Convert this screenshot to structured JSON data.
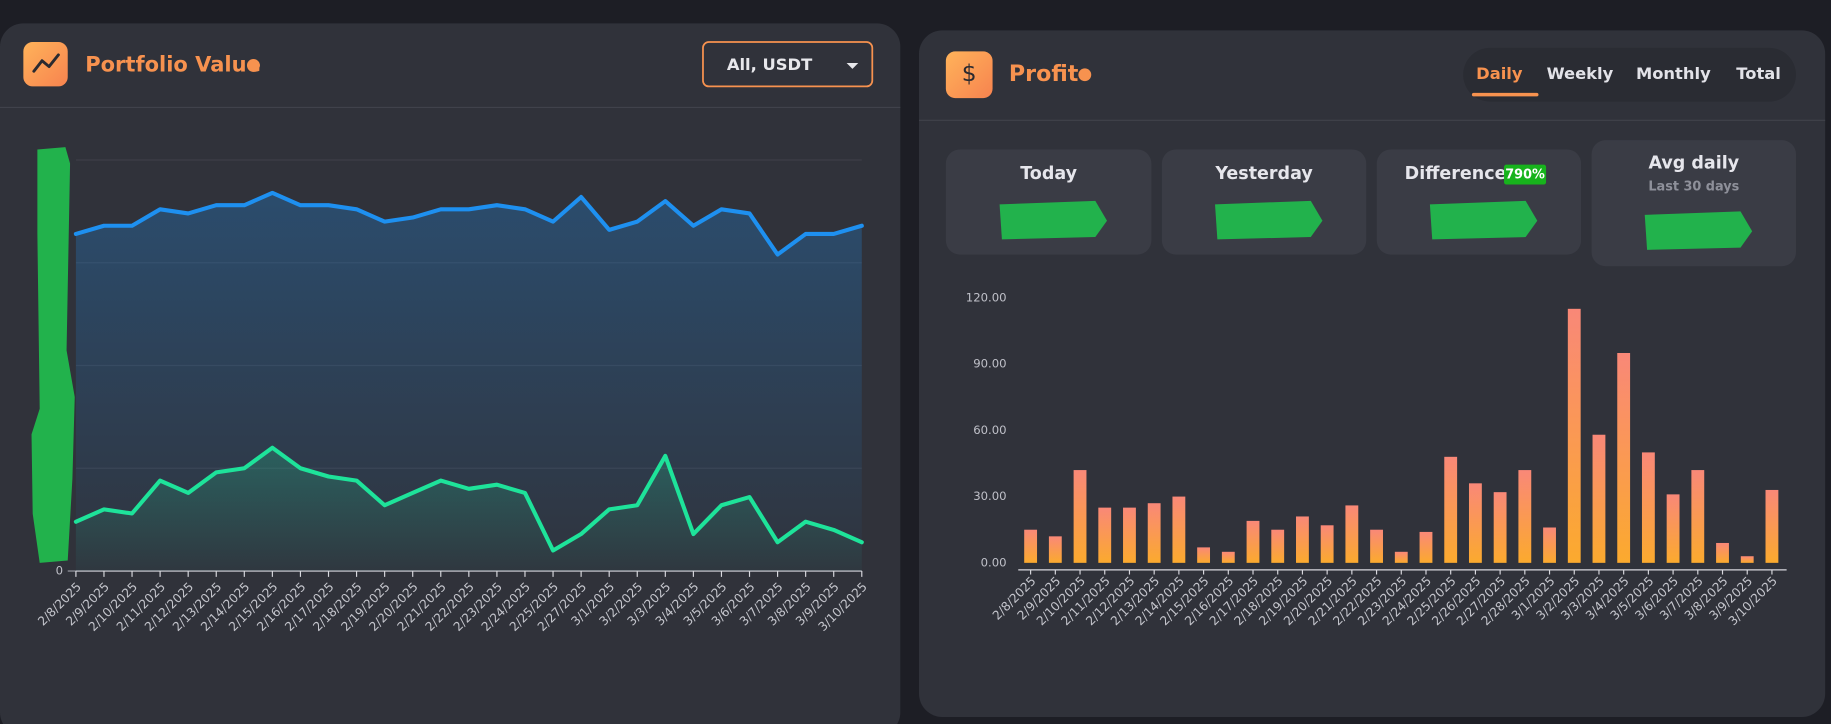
{
  "chart_data": [
    {
      "type": "line",
      "title": "Portfolio Value",
      "dropdown": "All, USDT",
      "categories": [
        "2/8/2025",
        "2/9/2025",
        "2/10/2025",
        "2/11/2025",
        "2/12/2025",
        "2/13/2025",
        "2/14/2025",
        "2/15/2025",
        "2/16/2025",
        "2/17/2025",
        "2/18/2025",
        "2/19/2025",
        "2/20/2025",
        "2/21/2025",
        "2/22/2025",
        "2/23/2025",
        "2/24/2025",
        "2/25/2025",
        "2/27/2025",
        "3/1/2025",
        "3/2/2025",
        "3/3/2025",
        "3/4/2025",
        "3/5/2025",
        "3/6/2025",
        "3/7/2025",
        "3/8/2025",
        "3/9/2025",
        "3/10/2025"
      ],
      "series": [
        {
          "color": "#1e90f0",
          "values": [
            82,
            84,
            84,
            88,
            87,
            89,
            89,
            92,
            89,
            89,
            88,
            85,
            86,
            88,
            88,
            89,
            88,
            85,
            91,
            83,
            85,
            90,
            84,
            88,
            87,
            77,
            82,
            82,
            84
          ]
        },
        {
          "color": "#1ee39a",
          "values": [
            12,
            15,
            14,
            22,
            19,
            24,
            25,
            30,
            25,
            23,
            22,
            16,
            19,
            22,
            20,
            21,
            19,
            5,
            9,
            15,
            16,
            28,
            9,
            16,
            18,
            7,
            12,
            10,
            7
          ]
        }
      ],
      "ylim": [
        0,
        100
      ],
      "yticks": [
        0
      ],
      "grid": true
    },
    {
      "type": "bar",
      "title": "Profit",
      "categories": [
        "2/8/2025",
        "2/9/2025",
        "2/10/2025",
        "2/11/2025",
        "2/12/2025",
        "2/13/2025",
        "2/14/2025",
        "2/15/2025",
        "2/16/2025",
        "2/17/2025",
        "2/18/2025",
        "2/19/2025",
        "2/20/2025",
        "2/21/2025",
        "2/22/2025",
        "2/23/2025",
        "2/24/2025",
        "2/25/2025",
        "2/26/2025",
        "2/27/2025",
        "2/28/2025",
        "3/1/2025",
        "3/2/2025",
        "3/3/2025",
        "3/4/2025",
        "3/5/2025",
        "3/6/2025",
        "3/7/2025",
        "3/8/2025",
        "3/9/2025",
        "3/10/2025"
      ],
      "values": [
        15,
        12,
        42,
        25,
        25,
        27,
        30,
        7,
        5,
        19,
        15,
        21,
        17,
        26,
        15,
        5,
        14,
        48,
        36,
        32,
        42,
        16,
        115,
        58,
        95,
        50,
        31,
        42,
        9,
        3,
        33
      ],
      "color": [
        "#f98878",
        "#fbaa2e"
      ],
      "ylim": [
        0,
        120
      ],
      "yticks": [
        {
          "value": 0,
          "label": "0.00"
        },
        {
          "value": 30,
          "label": "30.00"
        },
        {
          "value": 60,
          "label": "60.00"
        },
        {
          "value": 90,
          "label": "90.00"
        },
        {
          "value": 120,
          "label": "120.00"
        }
      ],
      "grid": false
    }
  ],
  "profit_panel": {
    "icon": "$",
    "tabs": [
      "Daily",
      "Weekly",
      "Monthly",
      "Total"
    ],
    "cards": [
      {
        "label": "Today"
      },
      {
        "label": "Yesterday"
      },
      {
        "label": "Difference",
        "badge": "790%"
      },
      {
        "label": "Avg daily",
        "sublabel": "Last 30 days"
      }
    ]
  }
}
